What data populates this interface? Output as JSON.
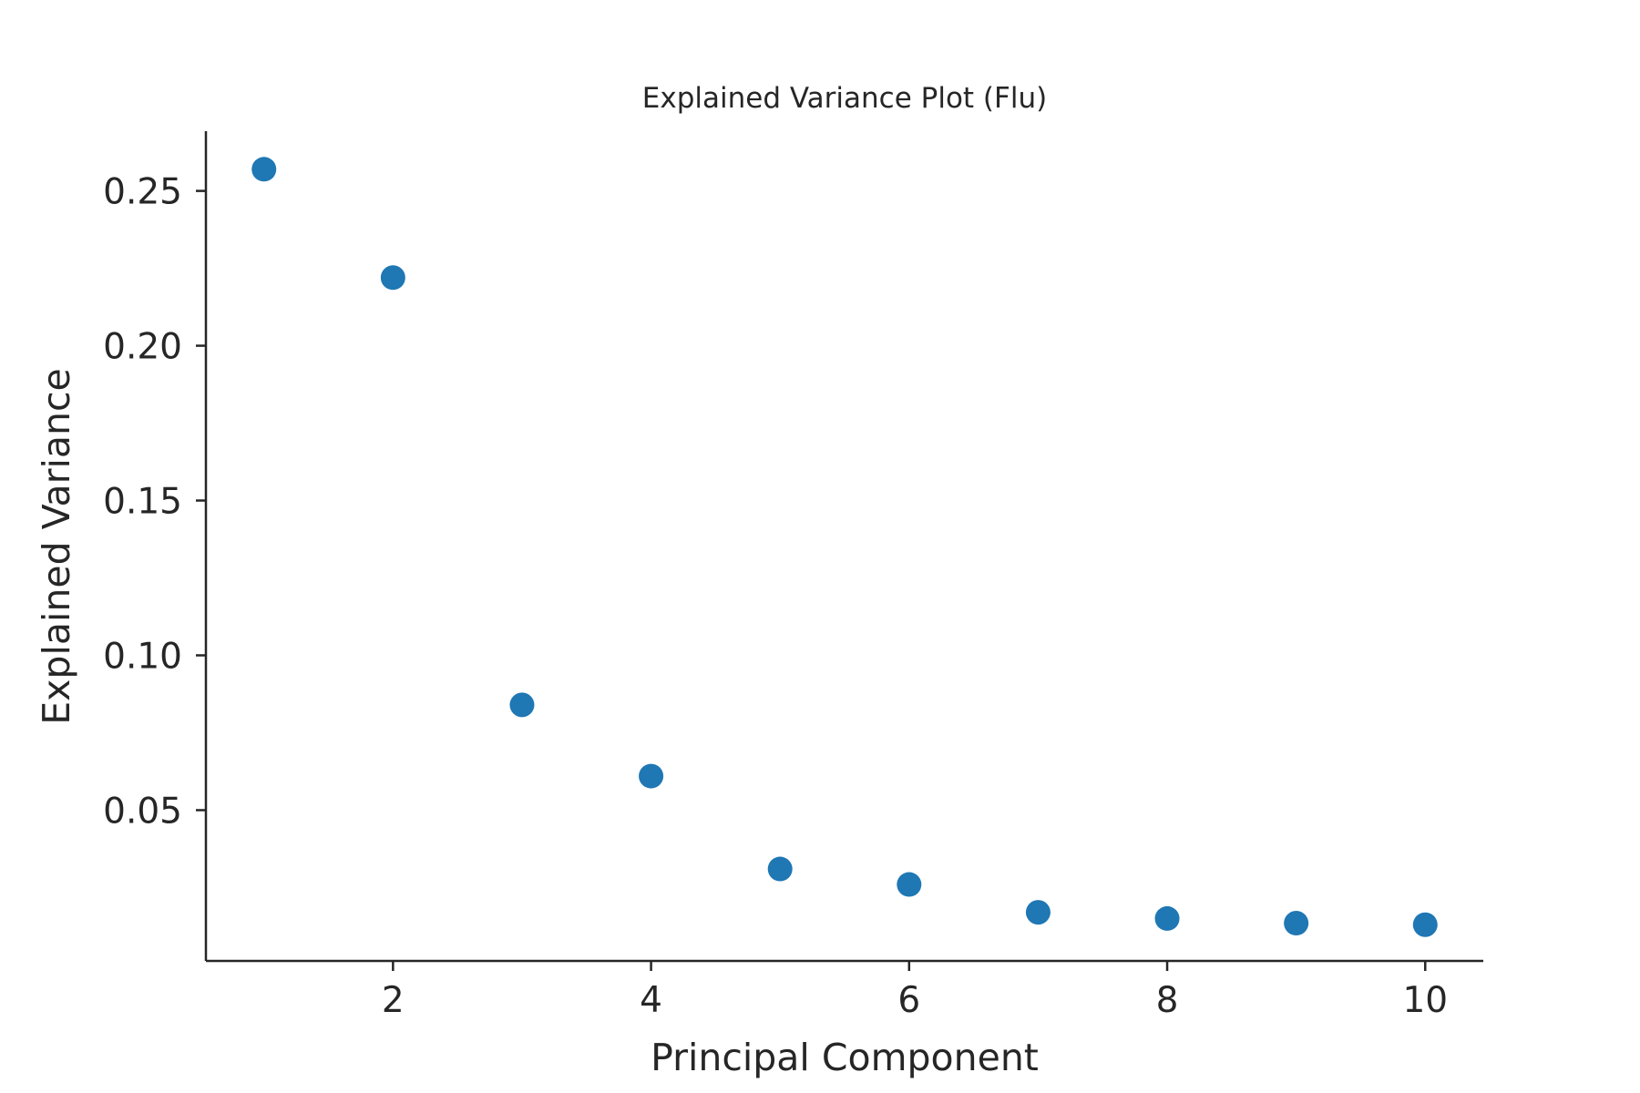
{
  "chart_data": {
    "type": "scatter",
    "title": "Explained Variance Plot (Flu)",
    "xlabel": "Principal Component",
    "ylabel": "Explained Variance",
    "x": [
      1,
      2,
      3,
      4,
      5,
      6,
      7,
      8,
      9,
      10
    ],
    "y": [
      0.257,
      0.222,
      0.084,
      0.061,
      0.031,
      0.026,
      0.017,
      0.015,
      0.0135,
      0.013
    ],
    "xlim": [
      0.55,
      10.45
    ],
    "ylim": [
      0.0013,
      0.2693
    ],
    "xticks": [
      2,
      4,
      6,
      8,
      10
    ],
    "xtick_labels": [
      "2",
      "4",
      "6",
      "8",
      "10"
    ],
    "yticks": [
      0.05,
      0.1,
      0.15,
      0.2,
      0.25
    ],
    "ytick_labels": [
      "0.05",
      "0.10",
      "0.15",
      "0.20",
      "0.25"
    ],
    "grid": false,
    "marker_color": "#1f77b4",
    "spines": "left-bottom"
  }
}
